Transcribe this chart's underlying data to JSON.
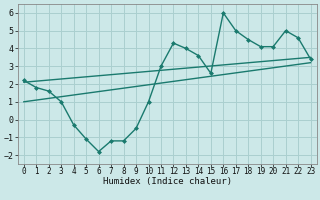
{
  "x": [
    0,
    1,
    2,
    3,
    4,
    5,
    6,
    7,
    8,
    9,
    10,
    11,
    12,
    13,
    14,
    15,
    16,
    17,
    18,
    19,
    20,
    21,
    22,
    23
  ],
  "y_main": [
    2.2,
    1.8,
    1.6,
    1.0,
    -0.3,
    -1.1,
    -1.8,
    -1.2,
    -1.2,
    -0.5,
    1.0,
    3.0,
    4.3,
    4.0,
    3.6,
    2.6,
    6.0,
    5.0,
    4.5,
    4.1,
    4.1,
    5.0,
    4.6,
    3.4
  ],
  "trend1_x": [
    0,
    23
  ],
  "trend1_y": [
    2.1,
    3.5
  ],
  "trend2_x": [
    0,
    23
  ],
  "trend2_y": [
    1.0,
    3.2
  ],
  "line_color": "#1a7a6e",
  "bg_color": "#cce8e8",
  "grid_color": "#aacfcf",
  "xlabel": "Humidex (Indice chaleur)",
  "xlim": [
    -0.5,
    23.5
  ],
  "ylim": [
    -2.5,
    6.5
  ],
  "yticks": [
    -2,
    -1,
    0,
    1,
    2,
    3,
    4,
    5,
    6
  ],
  "xticks": [
    0,
    1,
    2,
    3,
    4,
    5,
    6,
    7,
    8,
    9,
    10,
    11,
    12,
    13,
    14,
    15,
    16,
    17,
    18,
    19,
    20,
    21,
    22,
    23
  ],
  "xlabel_fontsize": 6.5,
  "tick_fontsize": 5.5
}
